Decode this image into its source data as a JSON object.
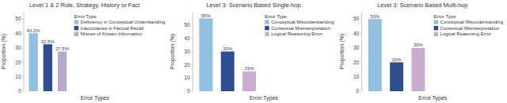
{
  "chart_data": [
    {
      "type": "bar",
      "title": "Level 1 & 2 Rule, Strategy, History or Fact",
      "x_label": "Error Types",
      "y_label": "Proportion (%)",
      "categories": [
        "Deficiency in Conceptual Understanding",
        "Inaccuracies in Factual Recall",
        "Misuse of Known Information"
      ],
      "values": [
        40.2,
        32.5,
        27.5
      ],
      "value_labels": [
        "40.2%",
        "32.5%",
        "27.5%"
      ],
      "colors": [
        "#92C0E0",
        "#2E4D8E",
        "#B8A8CC"
      ],
      "ylim": [
        0,
        55
      ],
      "yticks": [
        0,
        10,
        20,
        30,
        40,
        50
      ],
      "legend_title": "Error Type",
      "legend": "upper right",
      "data_labels": true,
      "tick_labels": "y",
      "grid": false
    },
    {
      "type": "bar",
      "title": "Level 3: Scenario Based Single-hop",
      "x_label": "Error Types",
      "y_label": "Proportion (%)",
      "categories": [
        "Conceptual Misunderstanding",
        "Contextual Misinterpretation",
        "Logical Reasoning Error"
      ],
      "values": [
        55,
        30,
        15
      ],
      "value_labels": [
        "55%",
        "30%",
        "15%"
      ],
      "colors": [
        "#92C0E0",
        "#2E4D8E",
        "#C8AECE"
      ],
      "ylim": [
        0,
        60
      ],
      "yticks": [
        0,
        10,
        20,
        30,
        40,
        50
      ],
      "legend_title": "Error Type",
      "legend": "upper right",
      "data_labels": true,
      "tick_labels": "y",
      "grid": false
    },
    {
      "type": "bar",
      "title": "Level 3: Scenario Based Multi-hop",
      "x_label": "Error Types",
      "y_label": "Proportion (%)",
      "categories": [
        "Conceptual Misunderstanding",
        "Contextual Misinterpretation",
        "Logical Reasoning Error"
      ],
      "values": [
        50,
        20,
        30
      ],
      "value_labels": [
        "50%",
        "20%",
        "30%"
      ],
      "colors": [
        "#92C0E0",
        "#2E4D8E",
        "#C8AECE"
      ],
      "ylim": [
        0,
        55
      ],
      "yticks": [
        0,
        10,
        20,
        30,
        40,
        50
      ],
      "legend_title": "Error Type",
      "legend": "upper right",
      "data_labels": true,
      "tick_labels": "y",
      "grid": false
    }
  ]
}
